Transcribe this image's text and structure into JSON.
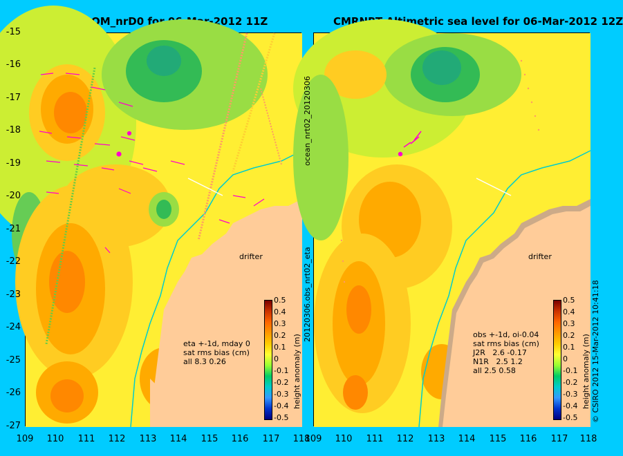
{
  "left": {
    "title": "OM_nrD0 for 06-Mar-2012 11Z",
    "note": "eta +-1d, mday 0\nsat rms bias (cm)\nall 8.3 0.26",
    "drifter": "drifter"
  },
  "right": {
    "title": "CMRNRT Altimetric sea level  for 06-Mar-2012 12Z",
    "note": "obs +-1d, oi-0.04\nsat rms bias (cm)\nJ2R   2.6 -0.17\nN1R   2.5 1.2\nall 2.5 0.58",
    "drifter": "drifter"
  },
  "y_ticks": [
    "-15",
    "-16",
    "-17",
    "-18",
    "-19",
    "-20",
    "-21",
    "-22",
    "-23",
    "-24",
    "-25",
    "-26",
    "-27"
  ],
  "x_ticks": [
    "109",
    "110",
    "111",
    "112",
    "113",
    "114",
    "115",
    "116",
    "117",
    "118"
  ],
  "colorbar": {
    "ticks": [
      "0.5",
      "0.4",
      "0.3",
      "0.2",
      "0.1",
      "0",
      "-0.1",
      "-0.2",
      "-0.3",
      "-0.4",
      "-0.5"
    ],
    "label": "height anomaly (m)"
  },
  "side_text_1": "ocean_nrt02_20120306",
  "side_text_2": "20120306.obs_nrt02_eta",
  "copyright": "© CSIRO 2012  15-Mar-2012 10:41:18",
  "colors": {
    "background": "#00ccff",
    "land": "#ffcc99",
    "arrows": "#ff00cc",
    "coast": "#00cccc"
  }
}
